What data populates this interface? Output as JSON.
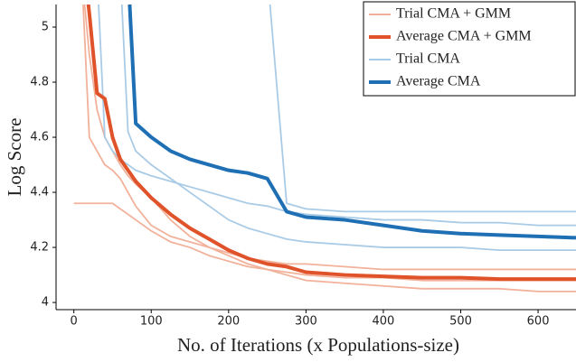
{
  "chart_data": {
    "type": "line",
    "x_label": "No. of Iterations (x Populations-size)",
    "y_label": "Log Score",
    "x": [
      0,
      10,
      20,
      30,
      40,
      50,
      60,
      70,
      80,
      100,
      125,
      150,
      175,
      200,
      225,
      250,
      275,
      300,
      350,
      400,
      450,
      500,
      550,
      600,
      649
    ],
    "xlim": [
      -23,
      649
    ],
    "xticks": [
      0,
      100,
      200,
      300,
      400,
      500,
      600
    ],
    "ylim": [
      3.974,
      5.082
    ],
    "yticks": [
      4,
      4.2,
      4.4,
      4.6,
      4.8,
      5
    ],
    "legend": "upper right",
    "series": [
      {
        "name": "Trial CMA + GMM",
        "color": "#f2b19a",
        "trials": [
          [
            4.36,
            4.36,
            4.36,
            4.36,
            4.36,
            4.36,
            4.34,
            4.32,
            4.3,
            4.26,
            4.22,
            4.2,
            4.17,
            4.15,
            4.13,
            4.12,
            4.1,
            4.08,
            4.07,
            4.06,
            4.05,
            4.05,
            4.05,
            4.04,
            4.04
          ],
          [
            null,
            5.2,
            4.9,
            4.7,
            4.6,
            4.55,
            4.5,
            4.46,
            4.43,
            4.38,
            4.3,
            4.24,
            4.2,
            4.17,
            4.14,
            4.12,
            4.11,
            4.1,
            4.09,
            4.09,
            4.08,
            4.08,
            4.08,
            4.08,
            4.08
          ],
          [
            null,
            5.2,
            4.6,
            4.55,
            4.5,
            4.48,
            4.45,
            4.4,
            4.35,
            4.28,
            4.24,
            4.22,
            4.2,
            4.18,
            4.16,
            4.15,
            4.14,
            4.14,
            4.13,
            4.12,
            4.12,
            4.12,
            4.12,
            4.12,
            4.12
          ]
        ]
      },
      {
        "name": "Average CMA + GMM",
        "color": "#e0532a",
        "values": [
          null,
          5.3,
          5.05,
          4.76,
          4.74,
          4.6,
          4.52,
          4.48,
          4.44,
          4.38,
          4.32,
          4.27,
          4.23,
          4.19,
          4.16,
          4.14,
          4.13,
          4.11,
          4.1,
          4.095,
          4.09,
          4.09,
          4.085,
          4.085,
          4.085
        ]
      },
      {
        "name": "Trial CMA",
        "color": "#a9cbe6",
        "trials": [
          [
            null,
            null,
            null,
            5.2,
            4.6,
            4.55,
            4.52,
            4.5,
            4.48,
            4.46,
            4.44,
            4.42,
            4.4,
            4.38,
            4.36,
            4.35,
            4.33,
            4.32,
            4.31,
            4.3,
            4.3,
            4.29,
            4.29,
            4.28,
            4.28
          ],
          [
            null,
            null,
            null,
            null,
            null,
            null,
            null,
            null,
            null,
            null,
            null,
            null,
            null,
            null,
            null,
            5.2,
            4.36,
            4.34,
            4.33,
            4.33,
            4.33,
            4.33,
            4.33,
            4.33,
            4.33
          ],
          [
            null,
            null,
            null,
            null,
            null,
            null,
            5.2,
            4.62,
            4.55,
            4.5,
            4.45,
            4.4,
            4.35,
            4.3,
            4.27,
            4.25,
            4.23,
            4.22,
            4.21,
            4.2,
            4.2,
            4.2,
            4.19,
            4.19,
            4.19
          ]
        ]
      },
      {
        "name": "Average CMA",
        "color": "#1f6fb4",
        "values": [
          null,
          null,
          null,
          null,
          null,
          null,
          null,
          5.2,
          4.65,
          4.6,
          4.55,
          4.52,
          4.5,
          4.48,
          4.47,
          4.45,
          4.33,
          4.31,
          4.3,
          4.28,
          4.26,
          4.25,
          4.245,
          4.24,
          4.235
        ]
      }
    ]
  }
}
